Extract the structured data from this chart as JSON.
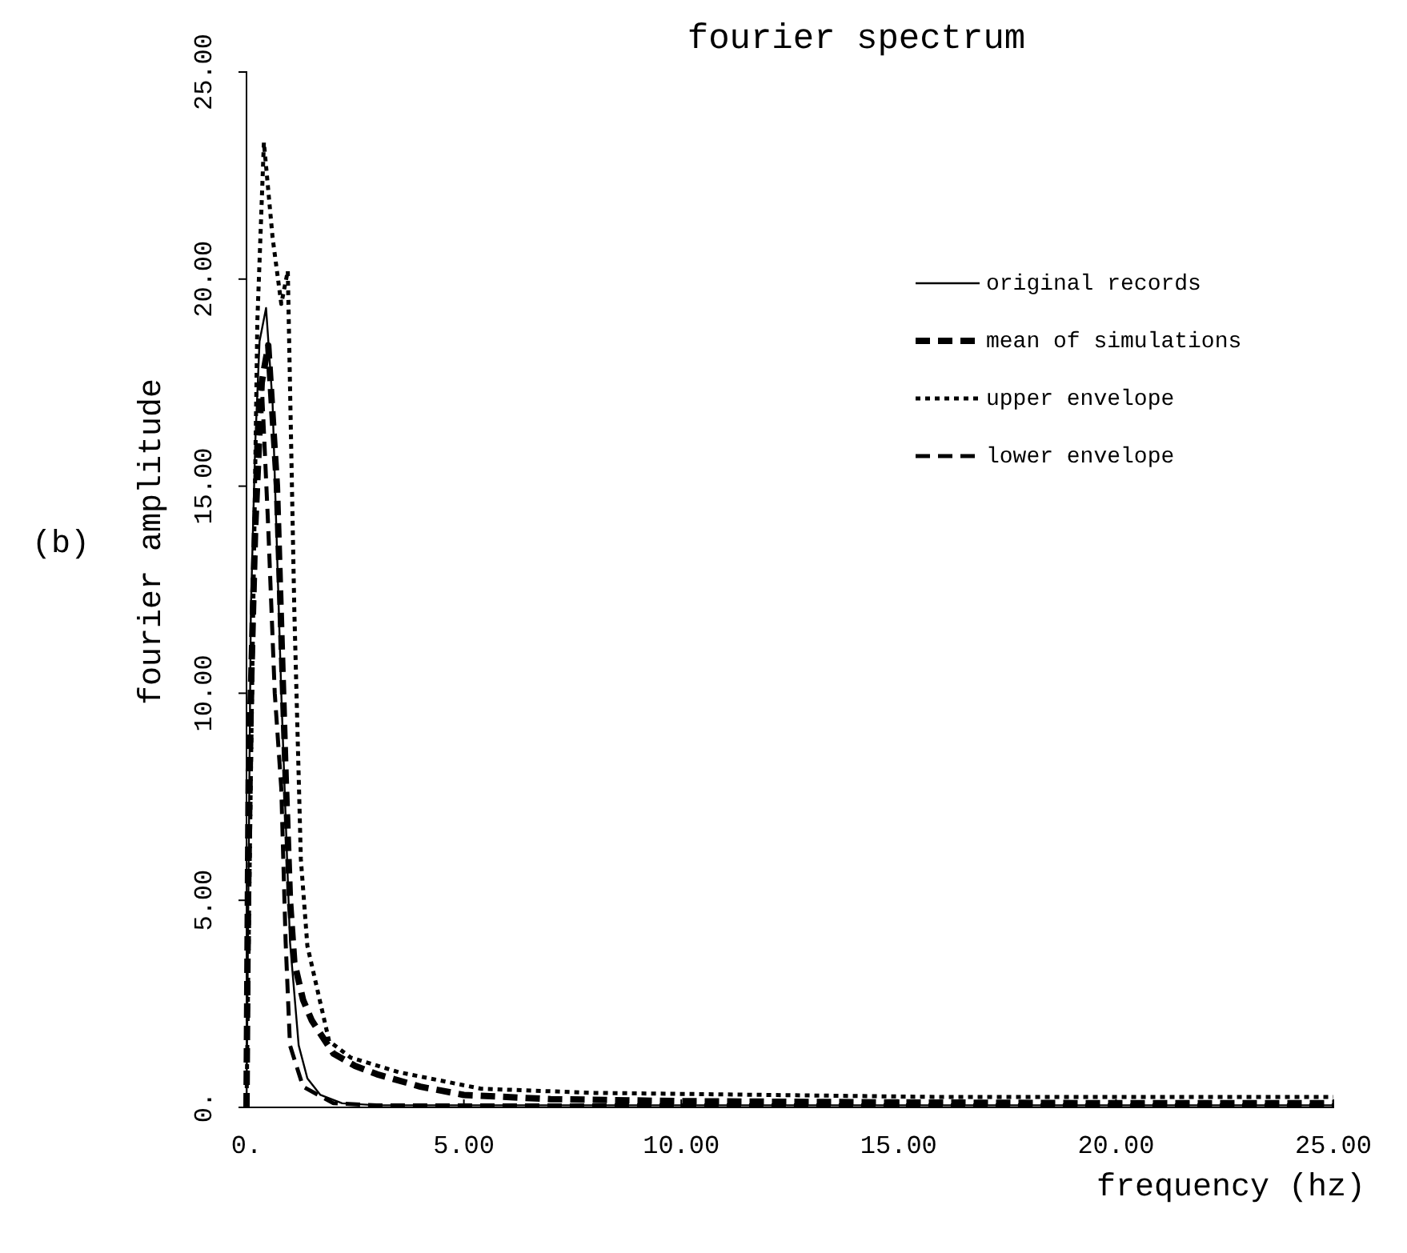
{
  "chart_data": {
    "type": "line",
    "title": "fourier spectrum",
    "xlabel": "frequency (hz)",
    "ylabel": "fourier amplitude",
    "annotations": [
      "(b)"
    ],
    "xlim": [
      0,
      25
    ],
    "ylim": [
      0,
      25
    ],
    "xticks": [
      {
        "value": 0,
        "label": "0."
      },
      {
        "value": 5,
        "label": "5.00"
      },
      {
        "value": 10,
        "label": "10.00"
      },
      {
        "value": 15,
        "label": "15.00"
      },
      {
        "value": 20,
        "label": "20.00"
      },
      {
        "value": 25,
        "label": "25.00"
      }
    ],
    "yticks": [
      {
        "value": 0,
        "label": "0."
      },
      {
        "value": 5,
        "label": "5.00"
      },
      {
        "value": 10,
        "label": "10.00"
      },
      {
        "value": 15,
        "label": "15.00"
      },
      {
        "value": 20,
        "label": "20.00"
      },
      {
        "value": 25,
        "label": "25.00"
      }
    ],
    "grid": false,
    "legend": "top right",
    "marker": "none",
    "series": [
      {
        "name": "original records",
        "color": "#000000",
        "line_style": "solid",
        "x": [
          0,
          0.1,
          0.2,
          0.3,
          0.45,
          0.6,
          0.8,
          1.0,
          1.2,
          1.4,
          1.7,
          2.2,
          3,
          5,
          10,
          15,
          20,
          25
        ],
        "values": [
          0,
          12,
          16,
          18.5,
          19.3,
          17,
          10,
          4,
          1.5,
          0.7,
          0.3,
          0.1,
          0.05,
          0.05,
          0.05,
          0.05,
          0.05,
          0.05
        ]
      },
      {
        "name": "mean of simulations",
        "color": "#000000",
        "line_style": "dashed",
        "x": [
          0,
          0.05,
          0.2,
          0.35,
          0.5,
          0.7,
          0.9,
          1.0,
          1.1,
          1.3,
          1.5,
          2,
          2.5,
          3,
          4,
          5,
          7,
          10,
          15,
          20,
          25
        ],
        "values": [
          0,
          8,
          14,
          17.5,
          18.4,
          15,
          8,
          5,
          3.5,
          2.6,
          2.1,
          1.3,
          1.0,
          0.8,
          0.5,
          0.3,
          0.2,
          0.15,
          0.12,
          0.1,
          0.1
        ]
      },
      {
        "name": "upper envelope",
        "color": "#000000",
        "line_style": "dotted",
        "x": [
          0,
          0.1,
          0.25,
          0.4,
          0.6,
          0.8,
          0.95,
          1.1,
          1.25,
          1.4,
          1.9,
          2.4,
          3.5,
          5.4,
          8,
          12,
          16,
          20,
          25
        ],
        "values": [
          0,
          8,
          19,
          23.3,
          21,
          19.4,
          20.2,
          12,
          6,
          3.9,
          1.6,
          1.2,
          0.85,
          0.45,
          0.35,
          0.3,
          0.25,
          0.25,
          0.25
        ]
      },
      {
        "name": "lower envelope",
        "color": "#000000",
        "line_style": "dashed",
        "x": [
          0,
          0.1,
          0.2,
          0.35,
          0.5,
          0.65,
          0.8,
          0.9,
          1.0,
          1.3,
          2,
          3,
          5,
          10,
          15,
          20,
          25
        ],
        "values": [
          0,
          8,
          15,
          17.5,
          14,
          10,
          7.7,
          4,
          1.5,
          0.5,
          0.1,
          0.05,
          0.05,
          0.05,
          0.05,
          0.05,
          0.05
        ]
      }
    ]
  }
}
